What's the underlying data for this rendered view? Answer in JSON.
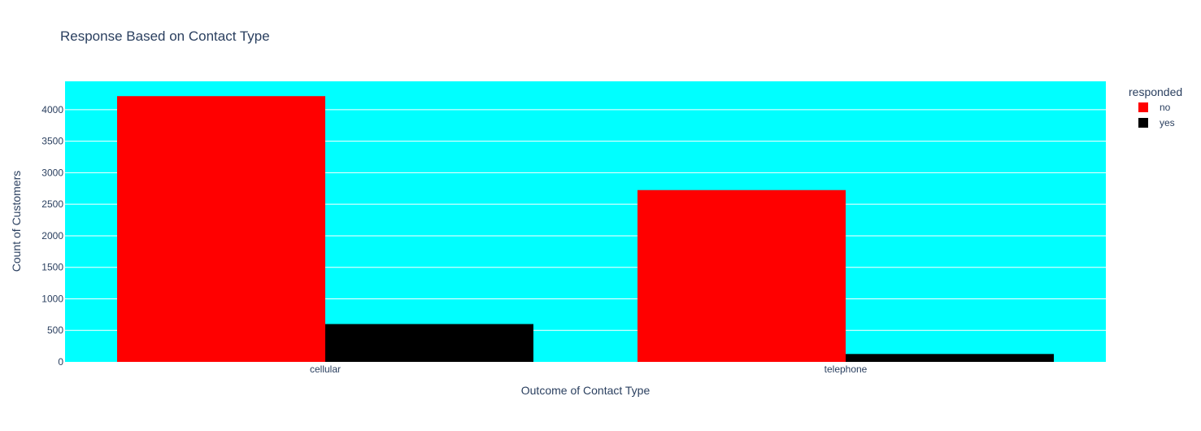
{
  "chart_data": {
    "type": "bar",
    "title": "Response Based on Contact Type",
    "xlabel": "Outcome of Contact Type",
    "ylabel": "Count of Customers",
    "categories": [
      "cellular",
      "telephone"
    ],
    "series": [
      {
        "name": "no",
        "color": "#ff0000",
        "values": [
          4215,
          2725
        ]
      },
      {
        "name": "yes",
        "color": "#000000",
        "values": [
          600,
          125
        ]
      }
    ],
    "ylim": [
      0,
      4450
    ],
    "yticks": [
      0,
      500,
      1000,
      1500,
      2000,
      2500,
      3000,
      3500,
      4000
    ],
    "grid": true,
    "plot_bgcolor": "#00ffff",
    "gridcolor": "#ffffff",
    "legend": {
      "title": "responded",
      "placement": "top-right"
    }
  }
}
